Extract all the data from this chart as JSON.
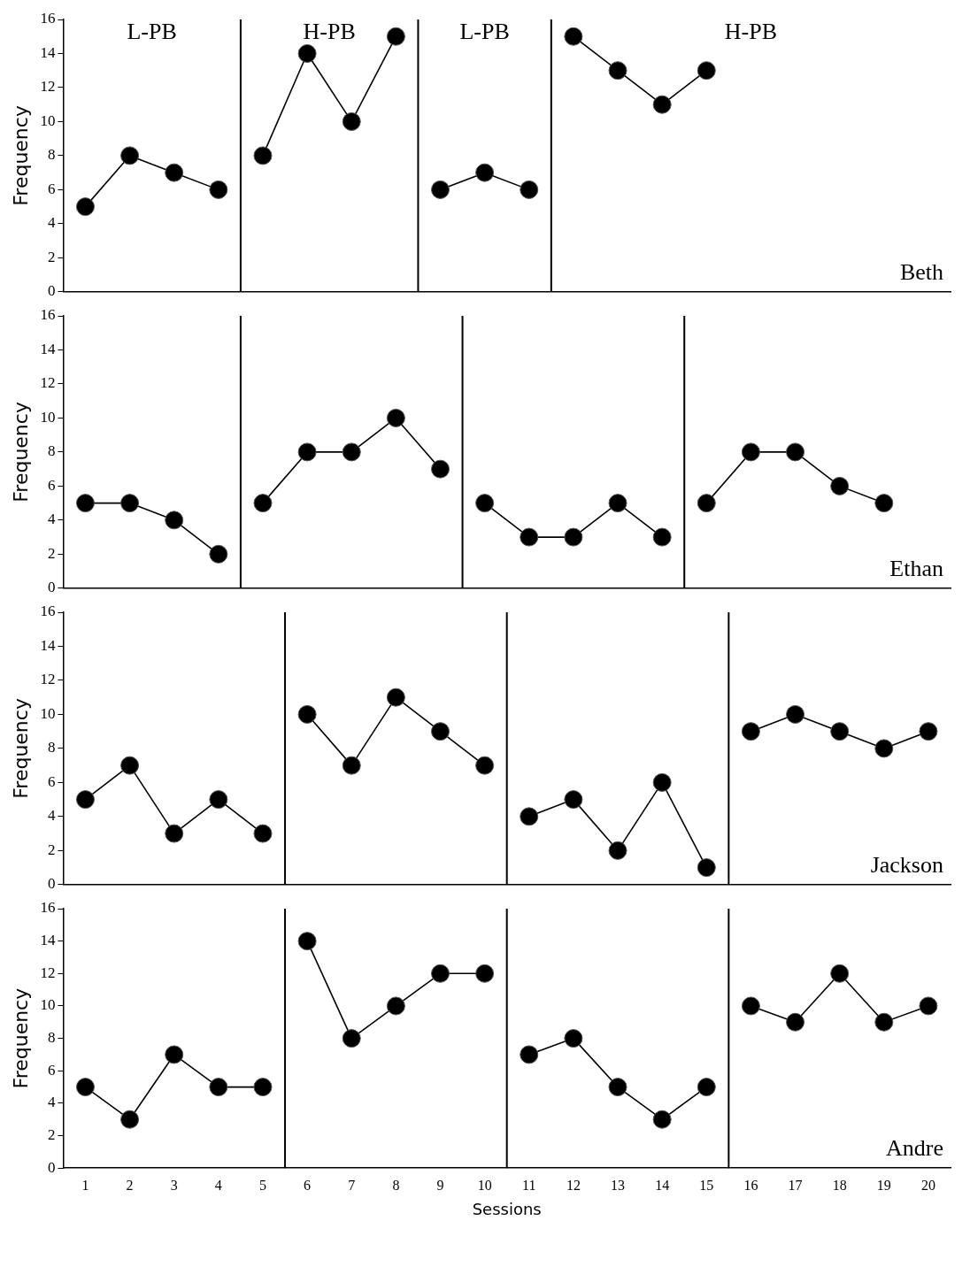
{
  "chart_data": [
    {
      "type": "line",
      "ylabel": "Frequency",
      "xlim": [
        0.5,
        20.5
      ],
      "xticks": [
        1,
        2,
        3,
        4,
        5,
        6,
        7,
        8,
        9,
        10,
        11,
        12,
        13,
        14,
        15,
        16,
        17,
        18,
        19,
        20
      ],
      "ylim": [
        0,
        16
      ],
      "yticks": [
        0,
        2,
        4,
        6,
        8,
        10,
        12,
        14,
        16
      ],
      "grid": false,
      "legend": false,
      "marker": "circle",
      "line_style": "solid",
      "tick_labels": "y",
      "series": [
        {
          "color": "#000000",
          "x": [
            1,
            2,
            3,
            4
          ],
          "values": [
            5,
            8,
            7,
            6
          ]
        },
        {
          "color": "#000000",
          "x": [
            5,
            6,
            7,
            8
          ],
          "values": [
            8,
            14,
            10,
            15
          ]
        },
        {
          "color": "#000000",
          "x": [
            9,
            10,
            11
          ],
          "values": [
            6,
            7,
            6
          ]
        },
        {
          "color": "#000000",
          "x": [
            12,
            13,
            14,
            15
          ],
          "values": [
            15,
            13,
            11,
            13
          ]
        }
      ],
      "ref_lines": [
        {
          "axis": "x",
          "value": 4.5,
          "color": "#000000"
        },
        {
          "axis": "x",
          "value": 8.5,
          "color": "#000000"
        },
        {
          "axis": "x",
          "value": 11.5,
          "color": "#000000"
        }
      ],
      "annotations": [
        "L-PB",
        "H-PB",
        "L-PB",
        "H-PB",
        "Beth"
      ]
    },
    {
      "type": "line",
      "ylabel": "Frequency",
      "xlim": [
        0.5,
        20.5
      ],
      "xticks": [
        1,
        2,
        3,
        4,
        5,
        6,
        7,
        8,
        9,
        10,
        11,
        12,
        13,
        14,
        15,
        16,
        17,
        18,
        19,
        20
      ],
      "ylim": [
        0,
        16
      ],
      "yticks": [
        0,
        2,
        4,
        6,
        8,
        10,
        12,
        14,
        16
      ],
      "grid": false,
      "legend": false,
      "marker": "circle",
      "line_style": "solid",
      "tick_labels": "y",
      "series": [
        {
          "color": "#000000",
          "x": [
            1,
            2,
            3,
            4
          ],
          "values": [
            5,
            5,
            4,
            2
          ]
        },
        {
          "color": "#000000",
          "x": [
            5,
            6,
            7,
            8,
            9
          ],
          "values": [
            5,
            8,
            8,
            10,
            7
          ]
        },
        {
          "color": "#000000",
          "x": [
            10,
            11,
            12,
            13,
            14
          ],
          "values": [
            5,
            3,
            3,
            5,
            3
          ]
        },
        {
          "color": "#000000",
          "x": [
            15,
            16,
            17,
            18,
            19
          ],
          "values": [
            5,
            8,
            8,
            6,
            5
          ]
        }
      ],
      "ref_lines": [
        {
          "axis": "x",
          "value": 4.5,
          "color": "#000000"
        },
        {
          "axis": "x",
          "value": 9.5,
          "color": "#000000"
        },
        {
          "axis": "x",
          "value": 14.5,
          "color": "#000000"
        }
      ],
      "annotations": [
        "Ethan"
      ]
    },
    {
      "type": "line",
      "ylabel": "Frequency",
      "xlim": [
        0.5,
        20.5
      ],
      "xticks": [
        1,
        2,
        3,
        4,
        5,
        6,
        7,
        8,
        9,
        10,
        11,
        12,
        13,
        14,
        15,
        16,
        17,
        18,
        19,
        20
      ],
      "ylim": [
        0,
        16
      ],
      "yticks": [
        0,
        2,
        4,
        6,
        8,
        10,
        12,
        14,
        16
      ],
      "grid": false,
      "legend": false,
      "marker": "circle",
      "line_style": "solid",
      "tick_labels": "y",
      "series": [
        {
          "color": "#000000",
          "x": [
            1,
            2,
            3,
            4,
            5
          ],
          "values": [
            5,
            7,
            3,
            5,
            3
          ]
        },
        {
          "color": "#000000",
          "x": [
            6,
            7,
            8,
            9,
            10
          ],
          "values": [
            10,
            7,
            11,
            9,
            7
          ]
        },
        {
          "color": "#000000",
          "x": [
            11,
            12,
            13,
            14,
            15
          ],
          "values": [
            4,
            5,
            2,
            6,
            1
          ]
        },
        {
          "color": "#000000",
          "x": [
            16,
            17,
            18,
            19,
            20
          ],
          "values": [
            9,
            10,
            9,
            8,
            9
          ]
        }
      ],
      "ref_lines": [
        {
          "axis": "x",
          "value": 5.5,
          "color": "#000000"
        },
        {
          "axis": "x",
          "value": 10.5,
          "color": "#000000"
        },
        {
          "axis": "x",
          "value": 15.5,
          "color": "#000000"
        }
      ],
      "annotations": [
        "Jackson"
      ]
    },
    {
      "type": "line",
      "ylabel": "Frequency",
      "xlabel": "Sessions",
      "xlim": [
        0.5,
        20.5
      ],
      "xticks": [
        1,
        2,
        3,
        4,
        5,
        6,
        7,
        8,
        9,
        10,
        11,
        12,
        13,
        14,
        15,
        16,
        17,
        18,
        19,
        20
      ],
      "ylim": [
        0,
        16
      ],
      "yticks": [
        0,
        2,
        4,
        6,
        8,
        10,
        12,
        14,
        16
      ],
      "grid": false,
      "legend": false,
      "marker": "circle",
      "line_style": "solid",
      "series": [
        {
          "color": "#000000",
          "x": [
            1,
            2,
            3,
            4,
            5
          ],
          "values": [
            5,
            3,
            7,
            5,
            5
          ]
        },
        {
          "color": "#000000",
          "x": [
            6,
            7,
            8,
            9,
            10
          ],
          "values": [
            14,
            8,
            10,
            12,
            12
          ]
        },
        {
          "color": "#000000",
          "x": [
            11,
            12,
            13,
            14,
            15
          ],
          "values": [
            7,
            8,
            5,
            3,
            5
          ]
        },
        {
          "color": "#000000",
          "x": [
            16,
            17,
            18,
            19,
            20
          ],
          "values": [
            10,
            9,
            12,
            9,
            10
          ]
        }
      ],
      "ref_lines": [
        {
          "axis": "x",
          "value": 5.5,
          "color": "#000000"
        },
        {
          "axis": "x",
          "value": 10.5,
          "color": "#000000"
        },
        {
          "axis": "x",
          "value": 15.5,
          "color": "#000000"
        }
      ],
      "annotations": [
        "Andre"
      ]
    }
  ]
}
